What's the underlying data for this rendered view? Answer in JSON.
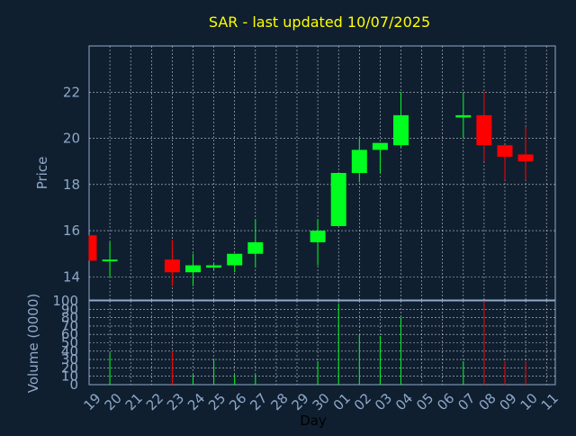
{
  "chart_data": [
    {
      "type": "candlestick",
      "title": "SAR - last updated 10/07/2025",
      "ylabel": "Price",
      "ylim": [
        13,
        24
      ],
      "yticks": [
        14,
        16,
        18,
        20,
        22
      ],
      "grid": true,
      "categories": [
        "19",
        "20",
        "21",
        "22",
        "23",
        "24",
        "25",
        "26",
        "27",
        "28",
        "29",
        "30",
        "01",
        "02",
        "03",
        "04",
        "05",
        "06",
        "07",
        "08",
        "09",
        "10",
        "11"
      ],
      "candles": [
        {
          "day": "19",
          "open": 15.8,
          "high": 15.8,
          "low": 14.7,
          "close": 14.7
        },
        {
          "day": "20",
          "open": 14.7,
          "high": 15.5,
          "low": 14.0,
          "close": 14.75
        },
        {
          "day": "23",
          "open": 14.75,
          "high": 15.6,
          "low": 13.6,
          "close": 14.2
        },
        {
          "day": "24",
          "open": 14.2,
          "high": 15.0,
          "low": 13.6,
          "close": 14.5
        },
        {
          "day": "25",
          "open": 14.4,
          "high": 14.6,
          "low": 14.3,
          "close": 14.5
        },
        {
          "day": "26",
          "open": 14.5,
          "high": 15.0,
          "low": 14.2,
          "close": 15.0
        },
        {
          "day": "27",
          "open": 15.0,
          "high": 16.5,
          "low": 14.4,
          "close": 15.5
        },
        {
          "day": "30",
          "open": 15.5,
          "high": 16.5,
          "low": 14.5,
          "close": 16.0
        },
        {
          "day": "01",
          "open": 16.2,
          "high": 18.5,
          "low": 16.2,
          "close": 18.5
        },
        {
          "day": "02",
          "open": 18.5,
          "high": 20.0,
          "low": 18.1,
          "close": 19.5
        },
        {
          "day": "03",
          "open": 19.5,
          "high": 19.8,
          "low": 18.5,
          "close": 19.8
        },
        {
          "day": "04",
          "open": 19.7,
          "high": 22.0,
          "low": 19.6,
          "close": 21.0
        },
        {
          "day": "07",
          "open": 20.9,
          "high": 22.0,
          "low": 20.0,
          "close": 21.0
        },
        {
          "day": "08",
          "open": 21.0,
          "high": 22.0,
          "low": 19.0,
          "close": 19.7
        },
        {
          "day": "09",
          "open": 19.7,
          "high": 19.7,
          "low": 18.2,
          "close": 19.2
        },
        {
          "day": "10",
          "open": 19.3,
          "high": 20.5,
          "low": 18.2,
          "close": 19.0
        }
      ],
      "colors": {
        "up": "#00ff1e",
        "down": "#ff0000"
      }
    },
    {
      "type": "bar",
      "ylabel": "Volume (0000)",
      "xlabel": "Day",
      "ylim": [
        0,
        100
      ],
      "yticks": [
        0,
        10,
        20,
        30,
        40,
        50,
        60,
        70,
        80,
        90,
        100
      ],
      "categories": [
        "19",
        "20",
        "21",
        "22",
        "23",
        "24",
        "25",
        "26",
        "27",
        "28",
        "29",
        "30",
        "01",
        "02",
        "03",
        "04",
        "05",
        "06",
        "07",
        "08",
        "09",
        "10",
        "11"
      ],
      "bars": [
        {
          "day": "20",
          "value": 38,
          "color": "#00ff1e"
        },
        {
          "day": "23",
          "value": 40,
          "color": "#ff0000"
        },
        {
          "day": "24",
          "value": 12,
          "color": "#00ff1e"
        },
        {
          "day": "25",
          "value": 30,
          "color": "#00ff1e"
        },
        {
          "day": "26",
          "value": 12,
          "color": "#00ff1e"
        },
        {
          "day": "27",
          "value": 12,
          "color": "#00ff1e"
        },
        {
          "day": "30",
          "value": 28,
          "color": "#00ff1e"
        },
        {
          "day": "01",
          "value": 97,
          "color": "#00ff1e"
        },
        {
          "day": "02",
          "value": 60,
          "color": "#00ff1e"
        },
        {
          "day": "03",
          "value": 58,
          "color": "#00ff1e"
        },
        {
          "day": "04",
          "value": 80,
          "color": "#00ff1e"
        },
        {
          "day": "07",
          "value": 28,
          "color": "#00ff1e"
        },
        {
          "day": "08",
          "value": 100,
          "color": "#ff0000"
        },
        {
          "day": "09",
          "value": 28,
          "color": "#ff0000"
        },
        {
          "day": "10",
          "value": 28,
          "color": "#ff0000"
        }
      ]
    }
  ],
  "colors": {
    "background": "#0f1f30",
    "axis": "#8fa8c8",
    "grid": "#ffffff",
    "title": "#ffff00",
    "label": "#8fa8c8",
    "xlabel": "#000000"
  }
}
